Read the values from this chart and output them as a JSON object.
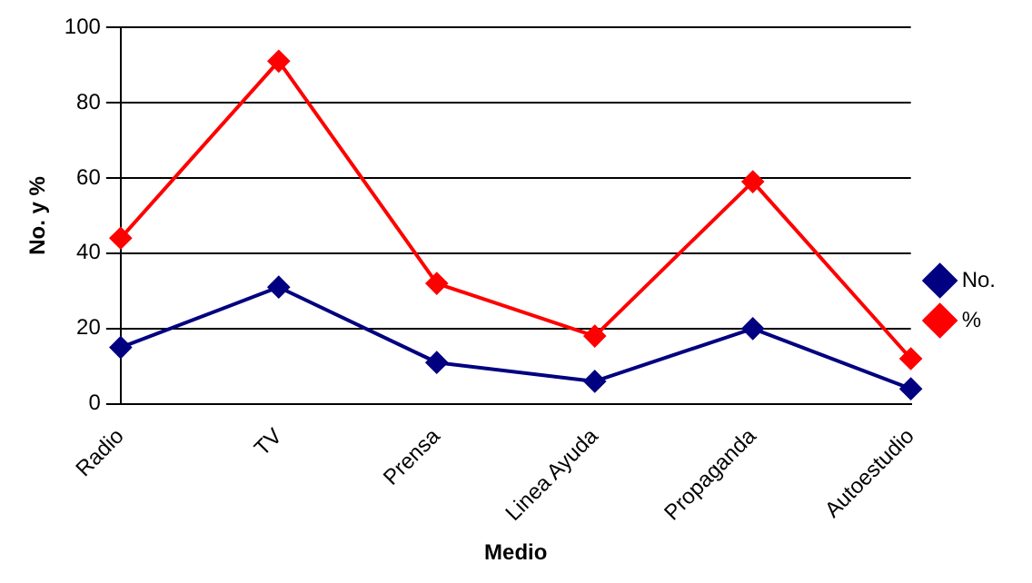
{
  "chart_data": {
    "type": "line",
    "xlabel": "Medio",
    "ylabel": "No. y %",
    "categories": [
      "Radio",
      "TV",
      "Prensa",
      "Linea Ayuda",
      "Propaganda",
      "Autoestudio"
    ],
    "series": [
      {
        "name": "No.",
        "color": "#000080",
        "values": [
          15,
          31,
          11,
          6,
          20,
          4
        ]
      },
      {
        "name": "%",
        "color": "#ff0000",
        "values": [
          44,
          91,
          32,
          18,
          59,
          12
        ]
      }
    ],
    "ylim": [
      0,
      100
    ],
    "yticks": [
      0,
      20,
      40,
      60,
      80,
      100
    ],
    "grid": "y",
    "legend": "right",
    "marker": "diamond",
    "line_style": "solid"
  }
}
